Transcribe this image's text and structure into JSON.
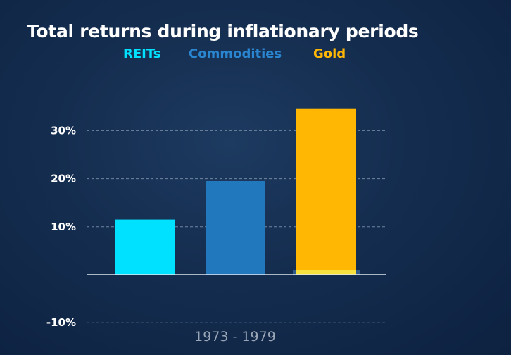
{
  "chart_data": {
    "type": "bar",
    "title": "Total returns during inflationary periods",
    "categories": [
      "1973 - 1979"
    ],
    "series": [
      {
        "name": "REITs",
        "values": [
          11.5
        ],
        "color": "#00e1ff"
      },
      {
        "name": "Commodities",
        "values": [
          19.5
        ],
        "color": "#2278bd"
      },
      {
        "name": "Gold",
        "values": [
          34.5
        ],
        "color": "#ffb703"
      }
    ],
    "y_ticks": [
      {
        "value": 30,
        "label": "30%"
      },
      {
        "value": 20,
        "label": "20%"
      },
      {
        "value": 10,
        "label": "10%"
      },
      {
        "value": -10,
        "label": "-10%"
      }
    ],
    "ylim": [
      -10,
      35
    ],
    "grid": "dashed horizontal",
    "legend": "top-center"
  }
}
